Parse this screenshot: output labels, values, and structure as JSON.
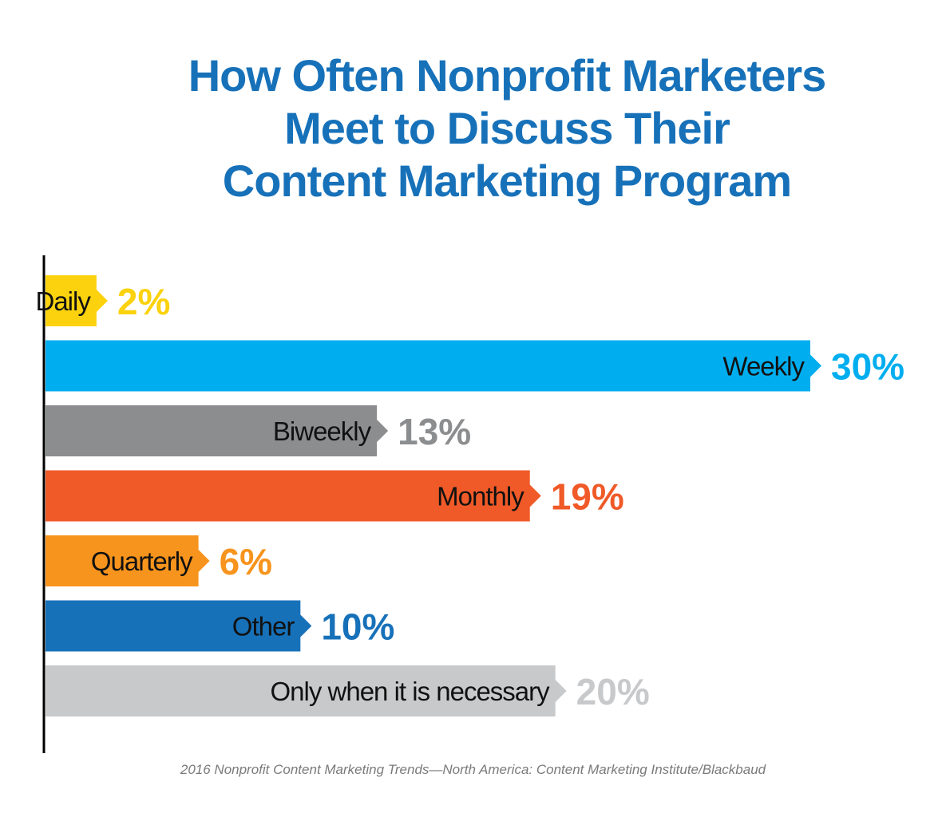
{
  "title": {
    "lines": [
      "How Often Nonprofit Marketers",
      "Meet to Discuss Their",
      "Content Marketing Program"
    ]
  },
  "source": "2016 Nonprofit Content Marketing Trends—North America: Content Marketing Institute/Blackbaud",
  "chart_data": {
    "type": "bar",
    "orientation": "horizontal",
    "title": "How Often Nonprofit Marketers Meet to Discuss Their Content Marketing Program",
    "categories": [
      "Daily",
      "Weekly",
      "Biweekly",
      "Monthly",
      "Quarterly",
      "Other",
      "Only when it is necessary"
    ],
    "values": [
      2,
      30,
      13,
      19,
      6,
      10,
      20
    ],
    "value_labels": [
      "2%",
      "30%",
      "13%",
      "19%",
      "6%",
      "10%",
      "20%"
    ],
    "unit": "%",
    "colors": [
      "#fbd20d",
      "#00aeef",
      "#8c8d8f",
      "#f05a28",
      "#f7941d",
      "#1771b9",
      "#c8c9cb"
    ],
    "value_label_colors": [
      "#fbd20d",
      "#00aeef",
      "#8c8d8f",
      "#f05a28",
      "#f7941d",
      "#1771b9",
      "#c8c9cb"
    ],
    "xlim": [
      0,
      30
    ],
    "grid": false,
    "legend": "none"
  }
}
